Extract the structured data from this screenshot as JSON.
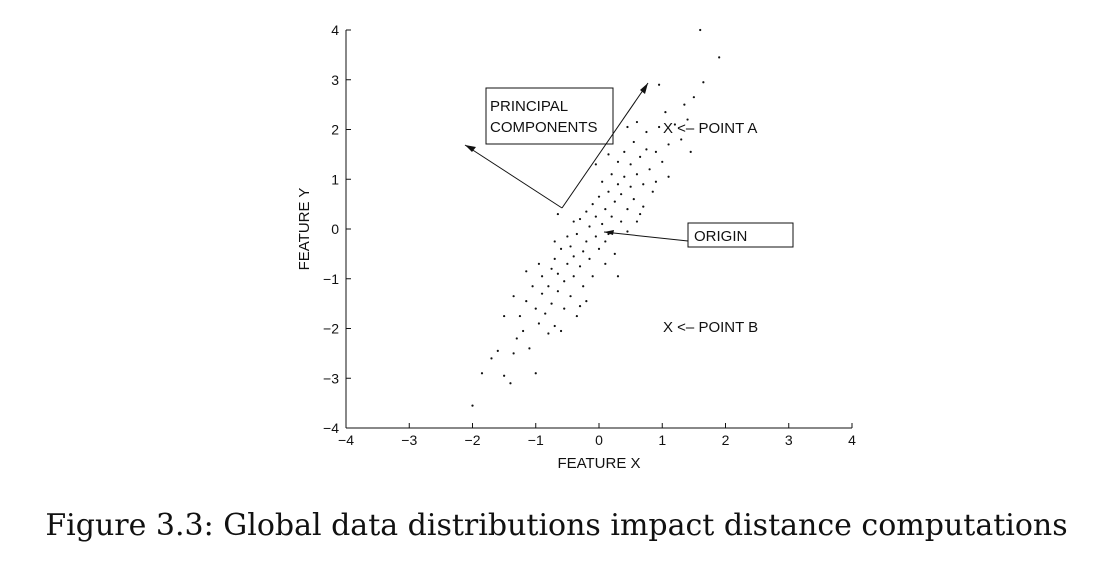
{
  "caption": "Figure 3.3: Global data distributions impact distance computations",
  "chart_data": {
    "type": "scatter",
    "xlabel": "FEATURE X",
    "ylabel": "FEATURE Y",
    "xlim": [
      -4,
      4
    ],
    "ylim": [
      -4,
      4
    ],
    "xticks": [
      -4,
      -3,
      -2,
      -1,
      0,
      1,
      2,
      3,
      4
    ],
    "yticks": [
      -4,
      -3,
      -2,
      -1,
      0,
      1,
      2,
      3,
      4
    ],
    "xtick_labels": [
      "−4",
      "−3",
      "−2",
      "−1",
      "0",
      "1",
      "2",
      "3",
      "4"
    ],
    "ytick_labels": [
      "−4",
      "−3",
      "−2",
      "−1",
      "0",
      "1",
      "2",
      "3",
      "4"
    ],
    "grid": false,
    "marker_color": "#111111",
    "points": [
      [
        -2.0,
        -3.55
      ],
      [
        -1.85,
        -2.9
      ],
      [
        -1.7,
        -2.6
      ],
      [
        -1.6,
        -2.45
      ],
      [
        -1.5,
        -2.95
      ],
      [
        -1.4,
        -3.1
      ],
      [
        -1.35,
        -2.5
      ],
      [
        -1.3,
        -2.2
      ],
      [
        -1.25,
        -1.75
      ],
      [
        -1.2,
        -2.05
      ],
      [
        -1.15,
        -1.45
      ],
      [
        -1.1,
        -2.4
      ],
      [
        -1.05,
        -1.15
      ],
      [
        -1.0,
        -2.9
      ],
      [
        -1.0,
        -1.6
      ],
      [
        -0.95,
        -1.9
      ],
      [
        -0.9,
        -1.3
      ],
      [
        -0.9,
        -0.95
      ],
      [
        -0.85,
        -1.7
      ],
      [
        -0.8,
        -2.1
      ],
      [
        -0.8,
        -1.15
      ],
      [
        -0.75,
        -0.8
      ],
      [
        -0.75,
        -1.5
      ],
      [
        -0.7,
        -1.95
      ],
      [
        -0.7,
        -0.6
      ],
      [
        -0.65,
        -1.25
      ],
      [
        -0.65,
        -0.9
      ],
      [
        -0.6,
        -2.05
      ],
      [
        -0.6,
        -0.4
      ],
      [
        -0.55,
        -1.05
      ],
      [
        -0.55,
        -1.6
      ],
      [
        -0.5,
        -0.7
      ],
      [
        -0.5,
        -0.15
      ],
      [
        -0.45,
        -1.35
      ],
      [
        -0.45,
        -0.35
      ],
      [
        -0.4,
        -0.95
      ],
      [
        -0.4,
        -0.55
      ],
      [
        -0.35,
        -0.1
      ],
      [
        -0.35,
        -1.75
      ],
      [
        -0.3,
        -0.75
      ],
      [
        -0.3,
        0.2
      ],
      [
        -0.25,
        -0.45
      ],
      [
        -0.25,
        -1.15
      ],
      [
        -0.2,
        0.35
      ],
      [
        -0.2,
        -0.25
      ],
      [
        -0.15,
        -0.6
      ],
      [
        -0.15,
        0.05
      ],
      [
        -0.1,
        0.5
      ],
      [
        -0.1,
        -0.95
      ],
      [
        -0.05,
        -0.15
      ],
      [
        -0.05,
        0.25
      ],
      [
        0.0,
        0.65
      ],
      [
        0.0,
        -0.4
      ],
      [
        0.05,
        0.1
      ],
      [
        0.05,
        0.95
      ],
      [
        0.1,
        -0.7
      ],
      [
        0.1,
        0.4
      ],
      [
        0.15,
        0.75
      ],
      [
        0.15,
        -0.1
      ],
      [
        0.2,
        1.1
      ],
      [
        0.2,
        0.25
      ],
      [
        0.25,
        0.55
      ],
      [
        0.25,
        -0.5
      ],
      [
        0.3,
        0.9
      ],
      [
        0.3,
        1.35
      ],
      [
        0.35,
        0.15
      ],
      [
        0.35,
        0.7
      ],
      [
        0.4,
        1.05
      ],
      [
        0.4,
        1.55
      ],
      [
        0.45,
        0.4
      ],
      [
        0.45,
        -0.05
      ],
      [
        0.5,
        0.85
      ],
      [
        0.5,
        1.3
      ],
      [
        0.55,
        1.75
      ],
      [
        0.55,
        0.6
      ],
      [
        0.6,
        1.1
      ],
      [
        0.6,
        2.15
      ],
      [
        0.65,
        0.3
      ],
      [
        0.65,
        1.45
      ],
      [
        0.7,
        0.9
      ],
      [
        0.75,
        1.6
      ],
      [
        0.75,
        1.95
      ],
      [
        0.8,
        1.2
      ],
      [
        0.85,
        0.75
      ],
      [
        0.9,
        1.55
      ],
      [
        0.95,
        2.05
      ],
      [
        1.0,
        1.35
      ],
      [
        1.05,
        2.35
      ],
      [
        1.1,
        1.7
      ],
      [
        1.2,
        2.1
      ],
      [
        1.3,
        1.8
      ],
      [
        1.35,
        2.5
      ],
      [
        1.4,
        2.2
      ],
      [
        1.45,
        1.55
      ],
      [
        1.5,
        2.65
      ],
      [
        1.65,
        2.95
      ],
      [
        1.6,
        4.0
      ],
      [
        1.9,
        3.45
      ],
      [
        0.95,
        2.9
      ],
      [
        -1.5,
        -1.75
      ],
      [
        -1.35,
        -1.35
      ],
      [
        -0.95,
        -0.7
      ],
      [
        -0.2,
        -1.45
      ],
      [
        0.3,
        -0.95
      ],
      [
        -0.65,
        0.3
      ],
      [
        0.2,
        1.85
      ],
      [
        -0.05,
        1.3
      ],
      [
        0.45,
        2.05
      ],
      [
        0.7,
        0.45
      ],
      [
        1.1,
        1.05
      ],
      [
        -1.15,
        -0.85
      ],
      [
        -0.4,
        0.15
      ],
      [
        0.1,
        -0.25
      ],
      [
        -0.3,
        -1.55
      ],
      [
        0.6,
        0.15
      ],
      [
        0.9,
        0.95
      ],
      [
        -0.7,
        -0.25
      ],
      [
        0.15,
        1.5
      ]
    ],
    "annotations": [
      {
        "text": "PRINCIPAL"
      },
      {
        "text": "COMPONENTS"
      },
      {
        "text": "ORIGIN"
      },
      {
        "text": "X <– POINT A"
      },
      {
        "text": "X <– POINT B"
      }
    ]
  }
}
